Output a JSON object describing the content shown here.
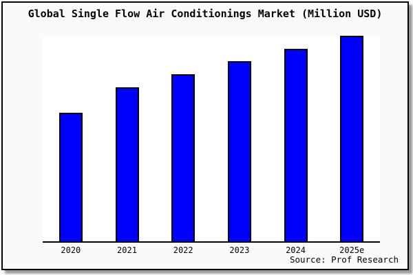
{
  "chart_data": {
    "type": "bar",
    "title": "Global Single Flow Air Conditionings Market (Million USD)",
    "categories": [
      "2020",
      "2021",
      "2022",
      "2023",
      "2024",
      "2025e"
    ],
    "values": [
      62.8,
      75.1,
      81.4,
      87.7,
      93.7,
      100
    ],
    "values_note": "No y-axis scale or value labels are shown in the chart; values are relative bar heights indexed to the tallest bar (2025e = 100).",
    "xlabel": "",
    "ylabel": "",
    "ylim": [
      0,
      100
    ],
    "grid": false,
    "legend": "none",
    "bar_color": "#0000ff",
    "bar_border_color": "#000000",
    "plot_bg": "#ffffff",
    "panel_bg": "#fafafa"
  },
  "source": {
    "label": "Source: Prof Research"
  }
}
